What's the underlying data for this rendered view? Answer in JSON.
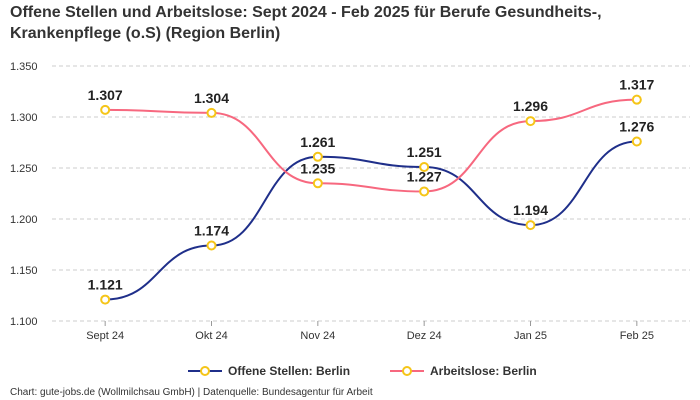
{
  "chart_data": {
    "type": "line",
    "title": "Offene Stellen und Arbeitslose: Sept 2024 - Feb 2025 für Berufe Gesundheits-, Krankenpflege (o.S) (Region Berlin)",
    "categories": [
      "Sept 24",
      "Okt 24",
      "Nov 24",
      "Dez 24",
      "Jan 25",
      "Feb 25"
    ],
    "series": [
      {
        "name": "Offene Stellen: Berlin",
        "color": "#1f2f8a",
        "values": [
          1121,
          1174,
          1261,
          1251,
          1194,
          1276
        ],
        "labels": [
          "1.121",
          "1.174",
          "1.261",
          "1.251",
          "1.194",
          "1.276"
        ]
      },
      {
        "name": "Arbeitslose: Berlin",
        "color": "#f7687f",
        "values": [
          1307,
          1304,
          1235,
          1227,
          1296,
          1317
        ],
        "labels": [
          "1.307",
          "1.304",
          "1.235",
          "1.227",
          "1.296",
          "1.317"
        ]
      }
    ],
    "yticks": [
      "1.100",
      "1.150",
      "1.200",
      "1.250",
      "1.300",
      "1.350"
    ],
    "ylim": [
      1100,
      1350
    ],
    "grid": true,
    "legend": "bottom-center",
    "marker_color": "#f5c518"
  },
  "footer": "Chart: gute-jobs.de (Wollmilchsau GmbH) | Datenquelle: Bundesagentur für Arbeit"
}
